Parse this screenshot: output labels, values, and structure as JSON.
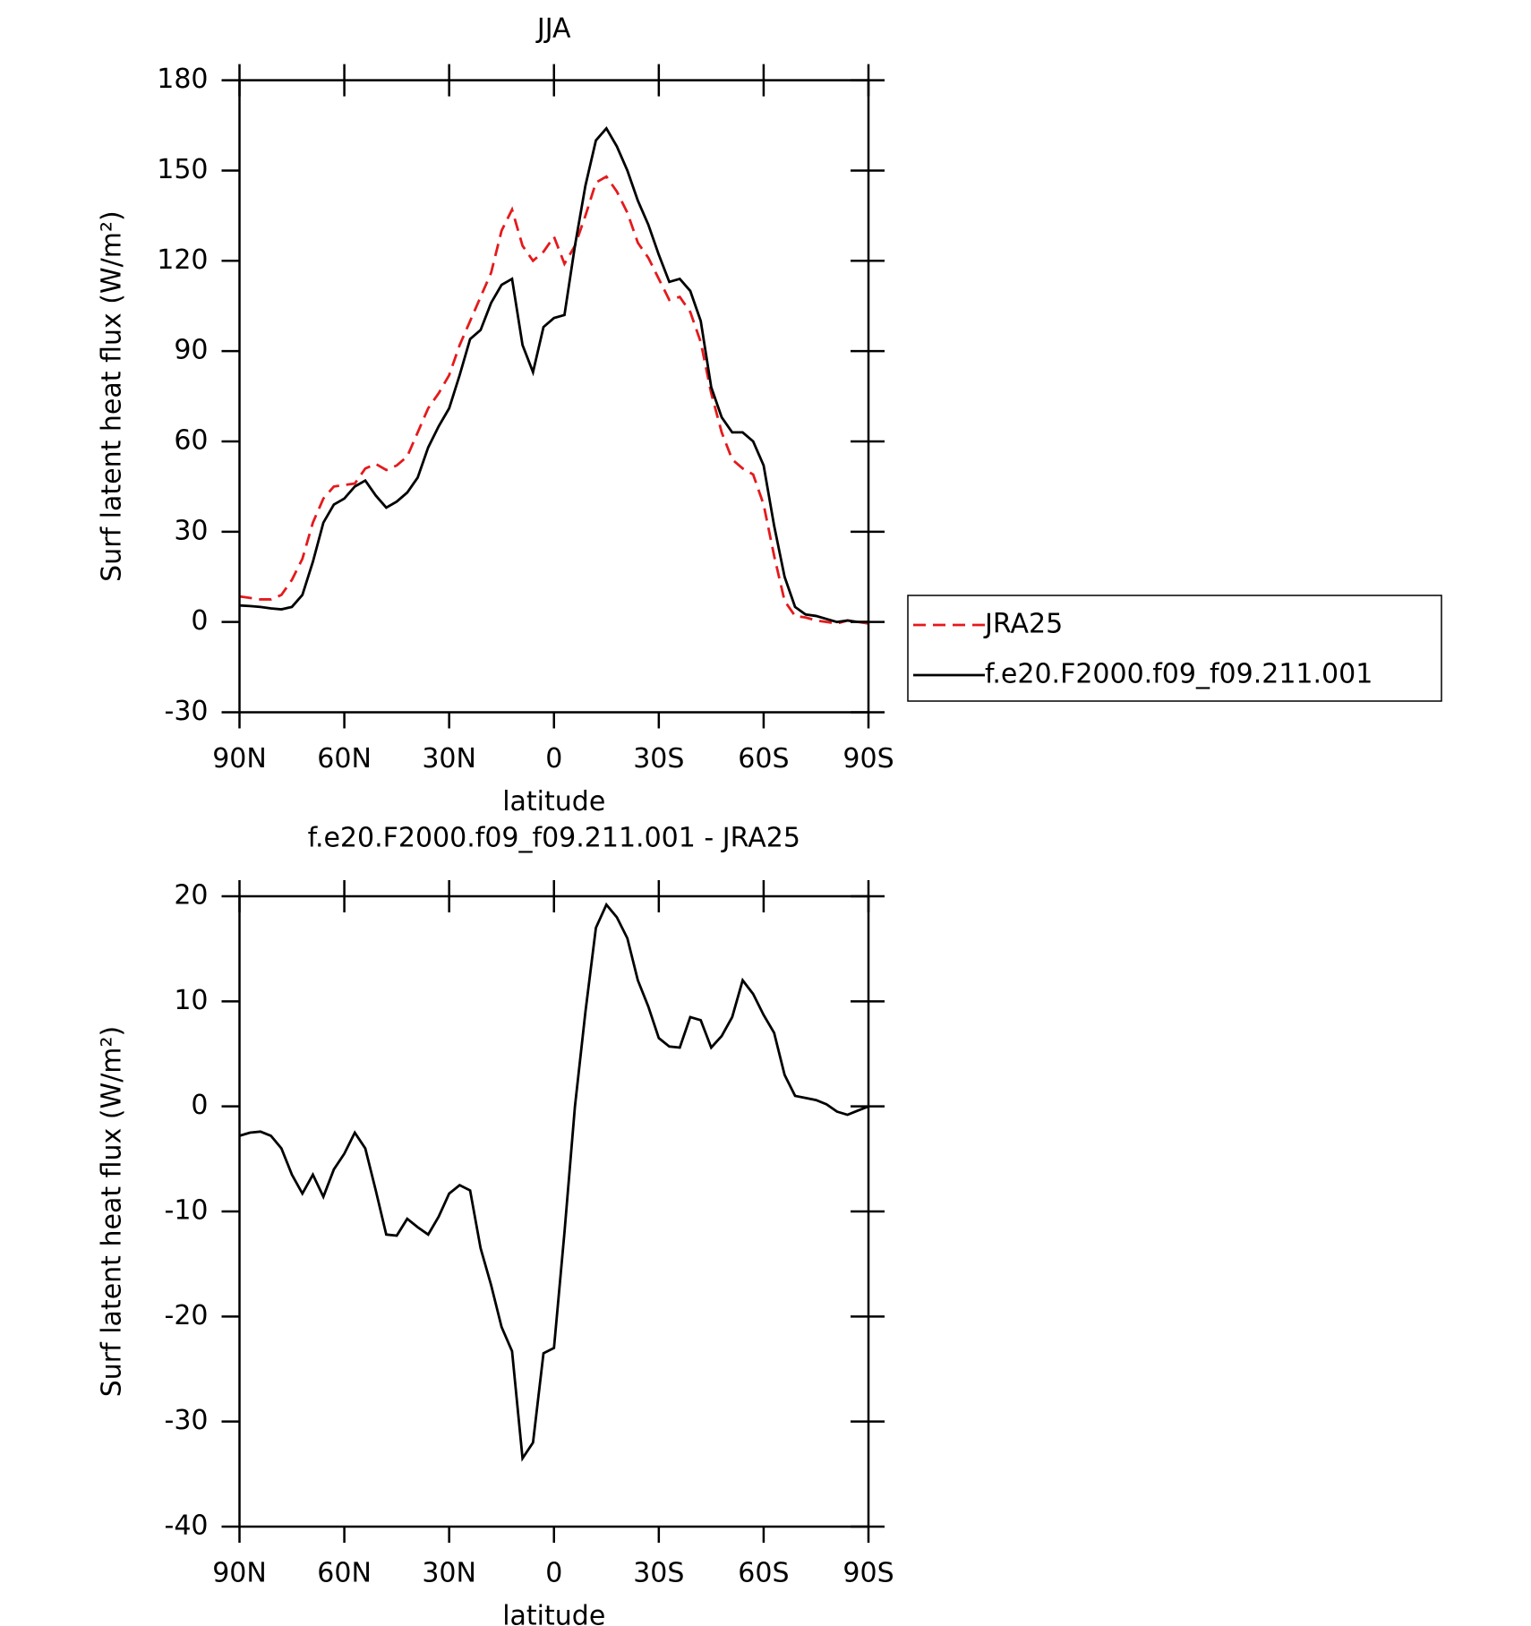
{
  "chart_data": [
    {
      "type": "line",
      "title": "JJA",
      "xlabel": "latitude",
      "ylabel": "Surf latent heat flux (W/m²)",
      "x": [
        90,
        87,
        84,
        81,
        78,
        75,
        72,
        69,
        66,
        63,
        60,
        57,
        54,
        51,
        48,
        45,
        42,
        39,
        36,
        33,
        30,
        27,
        24,
        21,
        18,
        15,
        12,
        9,
        6,
        3,
        0,
        -3,
        -6,
        -9,
        -12,
        -15,
        -18,
        -21,
        -24,
        -27,
        -30,
        -33,
        -36,
        -39,
        -42,
        -45,
        -48,
        -51,
        -54,
        -57,
        -60,
        -63,
        -66,
        -69,
        -72,
        -75,
        -78,
        -81,
        -84,
        -87,
        -90
      ],
      "xlim": [
        90,
        -90
      ],
      "xticks": [
        {
          "value": 90,
          "label": "90N"
        },
        {
          "value": 60,
          "label": "60N"
        },
        {
          "value": 30,
          "label": "30N"
        },
        0,
        {
          "value": -30,
          "label": "30S"
        },
        {
          "value": -60,
          "label": "60S"
        },
        {
          "value": -90,
          "label": "90S"
        }
      ],
      "ylim": [
        -30,
        180
      ],
      "yticks": [
        -30,
        0,
        30,
        60,
        90,
        120,
        150,
        180
      ],
      "legend": "outside right",
      "series": [
        {
          "name": "JRA25",
          "color": "#e41a1c",
          "style": "dashed",
          "values": [
            8.5,
            8,
            7.5,
            7.5,
            9,
            14,
            21,
            33,
            41,
            45,
            45.5,
            46,
            51,
            52.5,
            50.5,
            52,
            55,
            63,
            71,
            76,
            82,
            92,
            100,
            108,
            116,
            130,
            137,
            125,
            120,
            123,
            128,
            119,
            125,
            135,
            146,
            148,
            143,
            136,
            126,
            121,
            114,
            107,
            108,
            103,
            93,
            76,
            63,
            54,
            51,
            49,
            39,
            22,
            7,
            2,
            1.5,
            0.5,
            0,
            -0.5,
            0.5,
            0,
            -0.5
          ]
        },
        {
          "name": "f.e20.F2000.f09_f09.211.001",
          "color": "#000000",
          "style": "solid",
          "values": [
            5.5,
            5.3,
            5,
            4.5,
            4.2,
            5,
            9,
            20,
            33,
            39,
            41,
            45,
            47,
            42,
            38,
            40,
            43,
            48,
            58,
            65,
            71,
            82,
            94,
            97,
            106,
            112,
            114,
            92,
            83,
            98,
            101,
            102,
            125,
            145,
            160,
            164,
            158,
            150,
            140,
            132,
            122,
            113,
            114,
            110,
            100,
            78,
            68,
            63,
            63,
            60,
            52,
            32,
            15,
            5,
            2.5,
            2,
            1,
            0,
            0.5,
            0,
            0
          ]
        }
      ]
    },
    {
      "type": "line",
      "title": "f.e20.F2000.f09_f09.211.001 - JRA25",
      "xlabel": "latitude",
      "ylabel": "Surf latent heat flux (W/m²)",
      "x": [
        90,
        87,
        84,
        81,
        78,
        75,
        72,
        69,
        66,
        63,
        60,
        57,
        54,
        51,
        48,
        45,
        42,
        39,
        36,
        33,
        30,
        27,
        24,
        21,
        18,
        15,
        12,
        9,
        6,
        3,
        0,
        -3,
        -6,
        -9,
        -12,
        -15,
        -18,
        -21,
        -24,
        -27,
        -30,
        -33,
        -36,
        -39,
        -42,
        -45,
        -48,
        -51,
        -54,
        -57,
        -60,
        -63,
        -66,
        -69,
        -72,
        -75,
        -78,
        -81,
        -84,
        -87,
        -90
      ],
      "xlim": [
        90,
        -90
      ],
      "xticks": [
        {
          "value": 90,
          "label": "90N"
        },
        {
          "value": 60,
          "label": "60N"
        },
        {
          "value": 30,
          "label": "30N"
        },
        0,
        {
          "value": -30,
          "label": "30S"
        },
        {
          "value": -60,
          "label": "60S"
        },
        {
          "value": -90,
          "label": "90S"
        }
      ],
      "ylim": [
        -40,
        20
      ],
      "yticks": [
        -40,
        -30,
        -20,
        -10,
        0,
        10,
        20
      ],
      "series": [
        {
          "color": "#000000",
          "style": "solid",
          "values": [
            -2.8,
            -2.5,
            -2.4,
            -2.8,
            -4,
            -6.5,
            -8.3,
            -6.5,
            -8.6,
            -6,
            -4.5,
            -2.5,
            -4,
            -8,
            -12.2,
            -12.3,
            -10.7,
            -11.5,
            -12.2,
            -10.5,
            -8.3,
            -7.5,
            -8,
            -13.5,
            -17,
            -21,
            -23.3,
            -33.5,
            -32,
            -23.5,
            -23,
            -12,
            0,
            9,
            17,
            19.2,
            18,
            16,
            12,
            9.5,
            6.5,
            5.7,
            5.6,
            8.5,
            8.2,
            5.6,
            6.7,
            8.5,
            12,
            10.7,
            8.7,
            7,
            3,
            1,
            0.8,
            0.6,
            0.2,
            -0.5,
            -0.8,
            -0.4,
            0
          ]
        }
      ]
    }
  ]
}
